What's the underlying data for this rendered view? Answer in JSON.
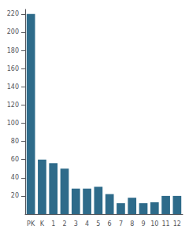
{
  "chart_data": {
    "type": "bar",
    "categories": [
      "PK",
      "K",
      "1",
      "2",
      "3",
      "4",
      "5",
      "6",
      "7",
      "8",
      "9",
      "10",
      "11",
      "12"
    ],
    "values": [
      220,
      60,
      56,
      50,
      28,
      28,
      30,
      22,
      12,
      18,
      12,
      13,
      20,
      20
    ],
    "color": "#2e6b8a",
    "ylim": [
      0,
      225
    ],
    "yticks": [
      20,
      40,
      60,
      80,
      100,
      120,
      140,
      160,
      180,
      200,
      220
    ],
    "grid": false
  }
}
